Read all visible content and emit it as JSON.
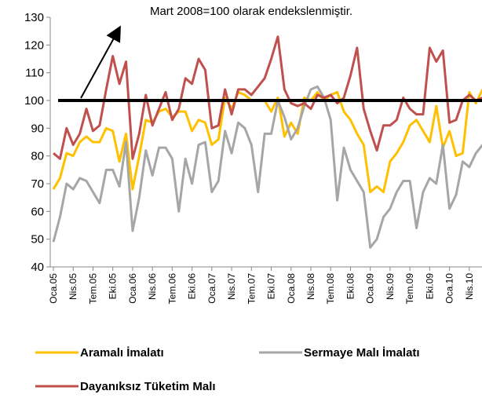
{
  "chart_data": {
    "type": "line",
    "annotation": "Mart 2008=100 olarak endekslenmiştir.",
    "categories": [
      "Oca.05",
      null,
      null,
      "Nis.05",
      null,
      null,
      "Tem.05",
      null,
      null,
      "Eki.05",
      null,
      null,
      "Oca.06",
      null,
      null,
      "Nis.06",
      null,
      null,
      "Tem.06",
      null,
      null,
      "Eki.06",
      null,
      null,
      "Oca.07",
      null,
      null,
      "Nis.07",
      null,
      null,
      "Tem.07",
      null,
      null,
      "Eki.07",
      null,
      null,
      "Oca.08",
      null,
      null,
      "Nis.08",
      null,
      null,
      "Tem.08",
      null,
      null,
      "Eki.08",
      null,
      null,
      "Oca.09",
      null,
      null,
      "Nis.09",
      null,
      null,
      "Tem.09",
      null,
      null,
      "Eki.09",
      null,
      null,
      "Oca.10",
      null,
      null,
      "Nis.10",
      null,
      null
    ],
    "series": [
      {
        "name": "Aramalı İmalatı",
        "color": "#ffc000",
        "values": [
          68,
          72,
          81,
          80,
          85,
          87,
          85,
          85,
          90,
          89,
          78,
          88,
          68,
          80,
          93,
          92,
          96,
          97,
          94,
          96,
          96,
          89,
          93,
          92,
          84,
          86,
          101,
          97,
          103,
          102,
          100,
          100,
          100,
          96,
          101,
          87,
          92,
          88,
          101,
          100,
          103,
          100,
          102,
          103,
          96,
          93,
          88,
          84,
          67,
          69,
          67,
          78,
          81,
          85,
          91,
          93,
          89,
          85,
          98,
          83,
          89,
          80,
          81,
          103,
          99,
          104
        ]
      },
      {
        "name": "Sermaye Malı İmalatı",
        "color": "#a6a6a6",
        "values": [
          49,
          58,
          70,
          68,
          72,
          71,
          67,
          63,
          75,
          75,
          69,
          85,
          53,
          65,
          82,
          73,
          83,
          83,
          79,
          60,
          79,
          70,
          84,
          85,
          67,
          71,
          89,
          81,
          92,
          90,
          84,
          67,
          88,
          88,
          100,
          94,
          86,
          90,
          98,
          104,
          105,
          101,
          93,
          64,
          83,
          75,
          71,
          67,
          47,
          50,
          58,
          61,
          67,
          71,
          71,
          54,
          67,
          72,
          70,
          84,
          61,
          66,
          78,
          76,
          81,
          84
        ]
      },
      {
        "name": "Dayanıksız Tüketim Malı",
        "color": "#c0504d",
        "values": [
          81,
          79,
          90,
          84,
          88,
          97,
          89,
          91,
          104,
          116,
          106,
          114,
          79,
          88,
          102,
          91,
          97,
          103,
          93,
          97,
          108,
          106,
          115,
          111,
          90,
          91,
          104,
          95,
          104,
          104,
          102,
          105,
          108,
          115,
          123,
          104,
          99,
          98,
          99,
          97,
          102,
          101,
          102,
          99,
          101,
          109,
          119,
          97,
          89,
          82,
          91,
          91,
          93,
          101,
          97,
          95,
          95,
          119,
          114,
          118,
          92,
          93,
          100,
          102,
          100,
          101
        ]
      }
    ],
    "reference_line": 100,
    "ylim": [
      40,
      130
    ],
    "yticks": [
      40,
      50,
      60,
      70,
      80,
      90,
      100,
      110,
      120,
      130
    ]
  }
}
